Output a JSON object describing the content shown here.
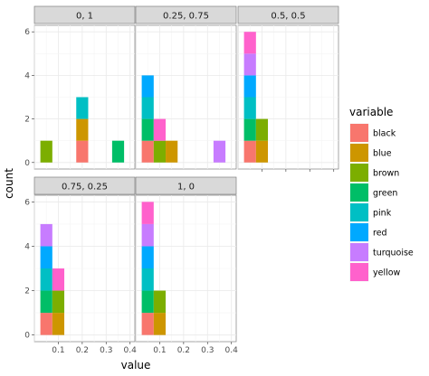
{
  "chart_data": {
    "type": "bar",
    "stacked": true,
    "faceted": true,
    "xlabel": "value",
    "ylabel": "count",
    "x_ticks": [
      "0.1",
      "0.2",
      "0.3",
      "0.4"
    ],
    "x_tick_values": [
      0.1,
      0.2,
      0.3,
      0.4
    ],
    "xlim": [
      0.0,
      0.42
    ],
    "y_ticks": [
      "0",
      "2",
      "4",
      "6"
    ],
    "y_tick_values": [
      0,
      2,
      4,
      6
    ],
    "ylim": [
      -0.3,
      6.3
    ],
    "bin_width": 0.05,
    "grid": true,
    "legend": {
      "title": "variable",
      "position": "right",
      "entries": [
        {
          "name": "black",
          "color": "#F8766D"
        },
        {
          "name": "blue",
          "color": "#CD9600"
        },
        {
          "name": "brown",
          "color": "#7CAE00"
        },
        {
          "name": "green",
          "color": "#00BE67"
        },
        {
          "name": "pink",
          "color": "#00BFC4"
        },
        {
          "name": "red",
          "color": "#00A9FF"
        },
        {
          "name": "turquoise",
          "color": "#C77CFF"
        },
        {
          "name": "yellow",
          "color": "#FF61CC"
        }
      ]
    },
    "facets": [
      {
        "label": "0, 1",
        "bins": [
          {
            "x": 0.05,
            "stack": [
              {
                "series": "brown",
                "count": 1
              }
            ]
          },
          {
            "x": 0.2,
            "stack": [
              {
                "series": "black",
                "count": 1
              },
              {
                "series": "blue",
                "count": 1
              },
              {
                "series": "pink",
                "count": 1
              }
            ]
          },
          {
            "x": 0.35,
            "stack": [
              {
                "series": "green",
                "count": 1
              }
            ]
          }
        ]
      },
      {
        "label": "0.25, 0.75",
        "bins": [
          {
            "x": 0.05,
            "stack": [
              {
                "series": "black",
                "count": 1
              },
              {
                "series": "green",
                "count": 1
              },
              {
                "series": "pink",
                "count": 1
              },
              {
                "series": "red",
                "count": 1
              }
            ]
          },
          {
            "x": 0.1,
            "stack": [
              {
                "series": "brown",
                "count": 1
              },
              {
                "series": "yellow",
                "count": 1
              }
            ]
          },
          {
            "x": 0.15,
            "stack": [
              {
                "series": "blue",
                "count": 1
              }
            ]
          },
          {
            "x": 0.35,
            "stack": [
              {
                "series": "turquoise",
                "count": 1
              }
            ]
          }
        ]
      },
      {
        "label": "0.5, 0.5",
        "bins": [
          {
            "x": 0.05,
            "stack": [
              {
                "series": "black",
                "count": 1
              },
              {
                "series": "green",
                "count": 1
              },
              {
                "series": "pink",
                "count": 1
              },
              {
                "series": "red",
                "count": 1
              },
              {
                "series": "turquoise",
                "count": 1
              },
              {
                "series": "yellow",
                "count": 1
              }
            ]
          },
          {
            "x": 0.1,
            "stack": [
              {
                "series": "blue",
                "count": 1
              },
              {
                "series": "brown",
                "count": 1
              }
            ]
          }
        ]
      },
      {
        "label": "0.75, 0.25",
        "bins": [
          {
            "x": 0.05,
            "stack": [
              {
                "series": "black",
                "count": 1
              },
              {
                "series": "green",
                "count": 1
              },
              {
                "series": "pink",
                "count": 1
              },
              {
                "series": "red",
                "count": 1
              },
              {
                "series": "turquoise",
                "count": 1
              }
            ]
          },
          {
            "x": 0.1,
            "stack": [
              {
                "series": "blue",
                "count": 1
              },
              {
                "series": "brown",
                "count": 1
              },
              {
                "series": "yellow",
                "count": 1
              }
            ]
          }
        ]
      },
      {
        "label": "1, 0",
        "bins": [
          {
            "x": 0.05,
            "stack": [
              {
                "series": "black",
                "count": 1
              },
              {
                "series": "green",
                "count": 1
              },
              {
                "series": "pink",
                "count": 1
              },
              {
                "series": "red",
                "count": 1
              },
              {
                "series": "turquoise",
                "count": 1
              },
              {
                "series": "yellow",
                "count": 1
              }
            ]
          },
          {
            "x": 0.1,
            "stack": [
              {
                "series": "blue",
                "count": 1
              },
              {
                "series": "brown",
                "count": 1
              }
            ]
          }
        ]
      }
    ]
  }
}
